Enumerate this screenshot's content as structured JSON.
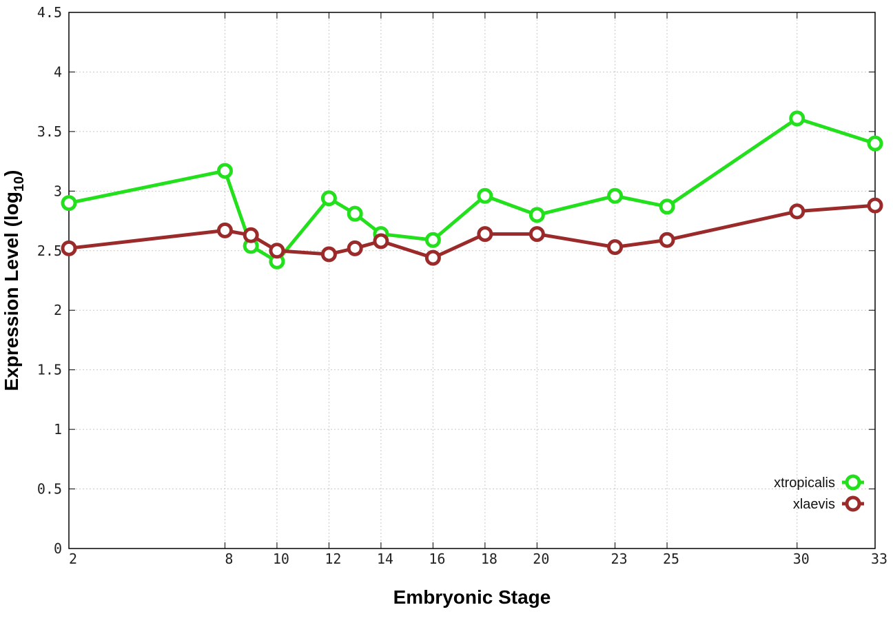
{
  "chart_data": {
    "type": "line",
    "xlabel": "Embryonic Stage",
    "ylabel_main": "Expression Level (log",
    "ylabel_sub": "10",
    "ylabel_close": ")",
    "xlim": [
      2,
      33
    ],
    "ylim": [
      0,
      4.5
    ],
    "x_ticks": [
      2,
      8,
      10,
      12,
      14,
      16,
      18,
      20,
      23,
      25,
      30,
      33
    ],
    "y_ticks": [
      0,
      0.5,
      1,
      1.5,
      2,
      2.5,
      3,
      3.5,
      4,
      4.5
    ],
    "y_tick_labels": [
      "0",
      "0.5",
      "1",
      "1.5",
      "2",
      "2.5",
      "3",
      "3.5",
      "4",
      "4.5"
    ],
    "grid": true,
    "legend_position": "bottom-right",
    "x": [
      2,
      8,
      9,
      10,
      12,
      13,
      14,
      16,
      18,
      20,
      23,
      25,
      30,
      33
    ],
    "series": [
      {
        "name": "xtropicalis",
        "color": "#22e01c",
        "values": [
          2.9,
          3.17,
          2.54,
          2.41,
          2.94,
          2.81,
          2.64,
          2.59,
          2.96,
          2.8,
          2.96,
          2.87,
          3.61,
          3.4
        ]
      },
      {
        "name": "xlaevis",
        "color": "#9b2b2b",
        "values": [
          2.52,
          2.67,
          2.63,
          2.5,
          2.47,
          2.52,
          2.58,
          2.44,
          2.64,
          2.64,
          2.53,
          2.59,
          2.83,
          2.88
        ]
      }
    ]
  }
}
